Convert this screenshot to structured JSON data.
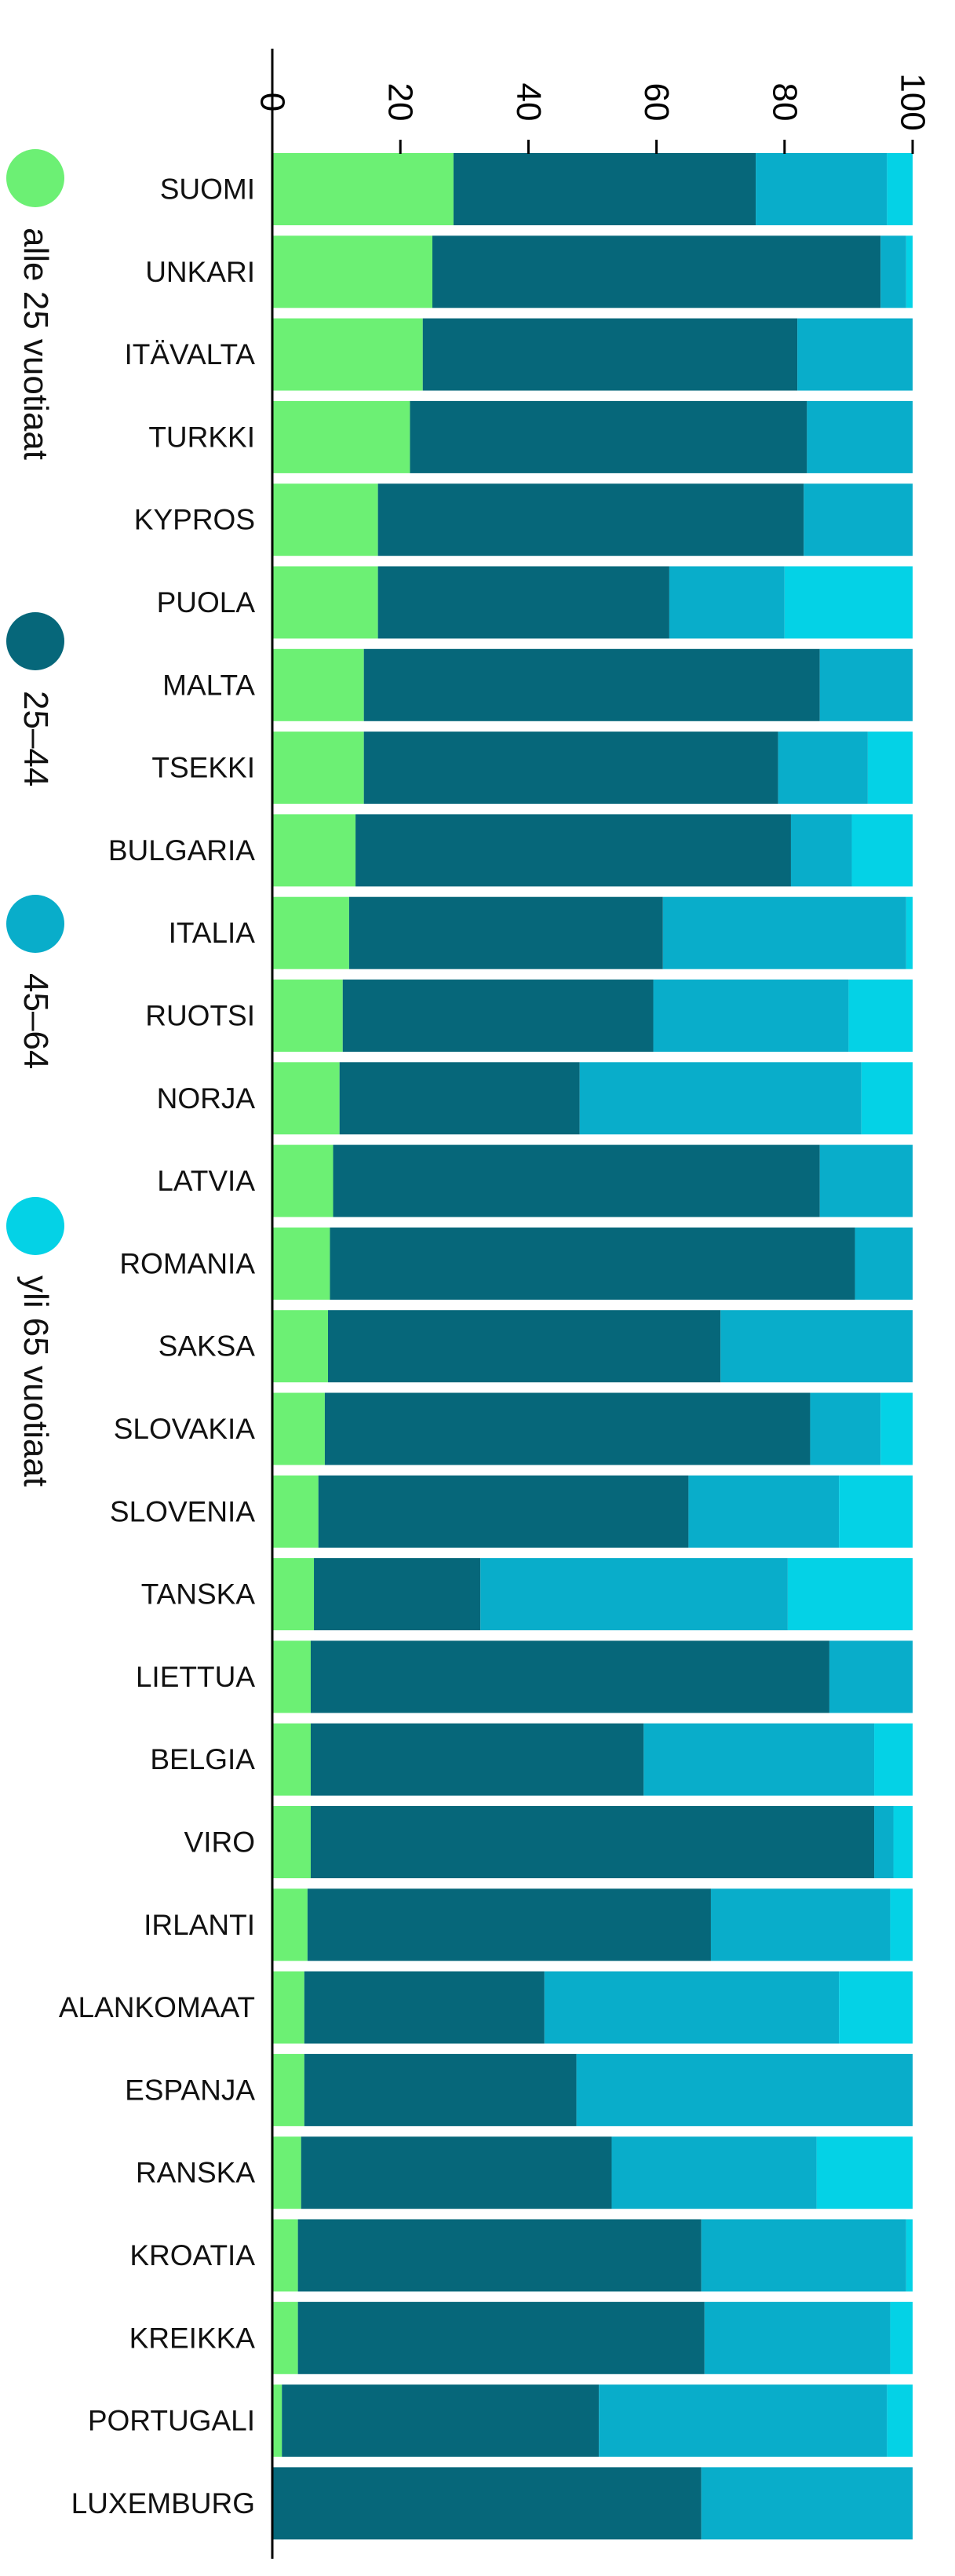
{
  "chart_data": {
    "type": "bar",
    "stacked": true,
    "orientation": "horizontal",
    "categories": [
      "SUOMI",
      "UNKARI",
      "ITÄVALTA",
      "TURKKI",
      "KYPROS",
      "PUOLA",
      "MALTA",
      "TSEKKI",
      "BULGARIA",
      "ITALIA",
      "RUOTSI",
      "NORJA",
      "LATVIA",
      "ROMANIA",
      "SAKSA",
      "SLOVAKIA",
      "SLOVENIA",
      "TANSKA",
      "LIETTUA",
      "BELGIA",
      "VIRO",
      "IRLANTI",
      "ALANKOMAAT",
      "ESPANJA",
      "RANSKA",
      "KROATIA",
      "KREIKKA",
      "PORTUGALI",
      "LUXEMBURG"
    ],
    "series": [
      {
        "name": "alle 25 vuotiaat",
        "color": "#6cf074",
        "values": [
          28.3,
          25.0,
          23.5,
          21.5,
          16.5,
          16.5,
          14.3,
          14.3,
          13.0,
          12.0,
          11.0,
          10.5,
          9.5,
          9.0,
          8.7,
          8.2,
          7.2,
          6.5,
          6.0,
          6.0,
          6.0,
          5.5,
          5.0,
          5.0,
          4.5,
          4.0,
          4.0,
          1.5,
          0
        ]
      },
      {
        "name": "25–44",
        "color": "#06677a",
        "values": [
          47.2,
          70.0,
          58.5,
          62.0,
          66.5,
          45.5,
          71.2,
          64.7,
          68.0,
          49.0,
          48.5,
          37.5,
          76.0,
          82.0,
          61.3,
          75.8,
          57.8,
          26.0,
          81.0,
          52.0,
          88.0,
          63.0,
          37.5,
          42.5,
          48.5,
          63.0,
          63.5,
          49.5,
          67.0
        ]
      },
      {
        "name": "45–64",
        "color": "#09adca",
        "values": [
          20.5,
          4.0,
          18.0,
          16.5,
          17.0,
          18.0,
          14.5,
          14.0,
          9.5,
          38.0,
          30.5,
          44.0,
          14.5,
          9.0,
          30.0,
          11.0,
          23.5,
          48.0,
          13.0,
          36.0,
          3.0,
          28.0,
          46.0,
          52.5,
          32.0,
          32.0,
          29.0,
          45.0,
          33.0
        ]
      },
      {
        "name": "yli 65 vuotiaat",
        "color": "#04d2e6",
        "values": [
          4.0,
          1.0,
          0,
          0,
          0,
          20.0,
          0,
          7.0,
          9.5,
          1.0,
          10.0,
          8.0,
          0,
          0,
          0,
          5.0,
          11.5,
          19.5,
          0,
          6.0,
          3.0,
          3.5,
          11.5,
          0,
          15.0,
          1.0,
          3.5,
          4.0,
          0
        ]
      }
    ],
    "xlim": [
      0,
      100
    ],
    "xticks": [
      0,
      20,
      40,
      60,
      80,
      100
    ],
    "xlabel": "",
    "ylabel": "",
    "title": "",
    "grid": false,
    "legend": "left",
    "axis_color": "#000000",
    "label_color": "#111111",
    "background": "#ffffff"
  }
}
